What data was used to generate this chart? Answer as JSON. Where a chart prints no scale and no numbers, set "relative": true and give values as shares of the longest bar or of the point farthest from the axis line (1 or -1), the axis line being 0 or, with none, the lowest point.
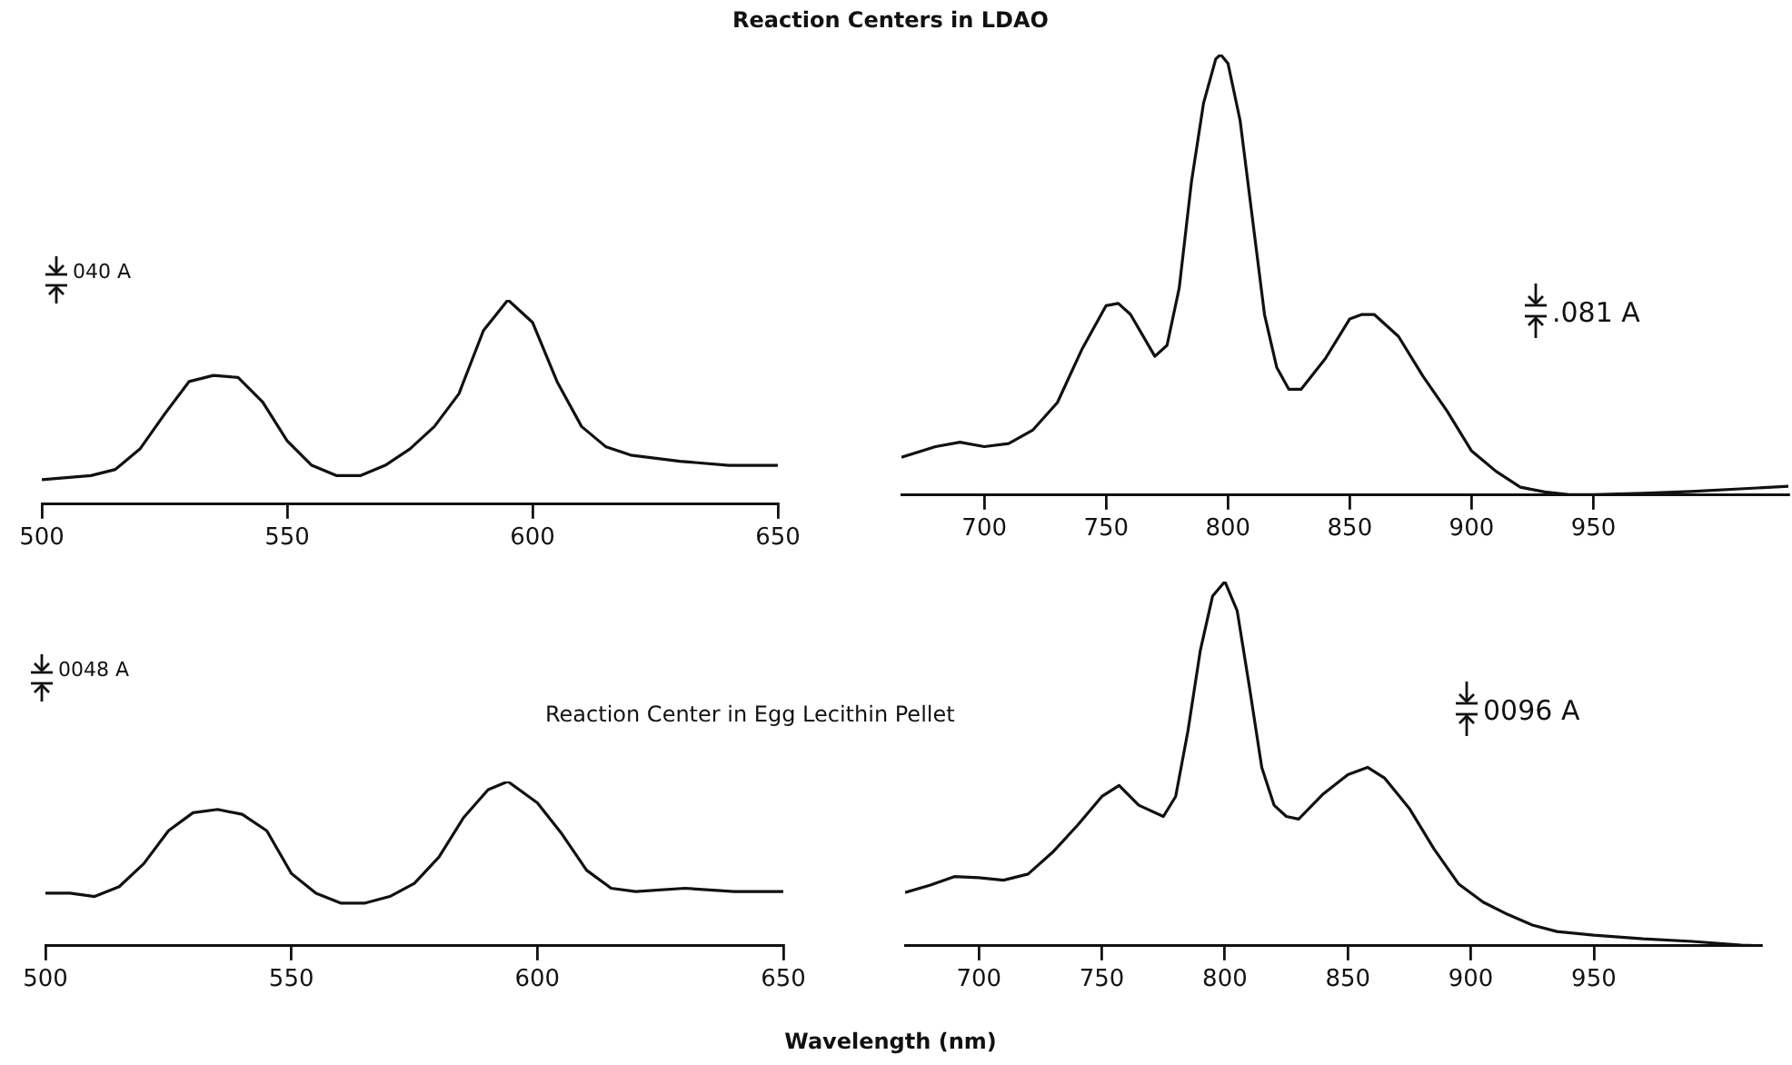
{
  "chart_data": [
    {
      "type": "line",
      "title": "Reaction Centers in LDAO",
      "relative": true,
      "color": "#111111",
      "xlim": [
        500,
        650
      ],
      "xticks": [
        500,
        550,
        600,
        650
      ],
      "annotations": [
        "040 A"
      ],
      "x": [
        500,
        510,
        515,
        520,
        525,
        530,
        535,
        540,
        545,
        550,
        555,
        560,
        565,
        570,
        575,
        580,
        585,
        590,
        595,
        600,
        605,
        610,
        615,
        620,
        630,
        640,
        650
      ],
      "values": [
        0.12,
        0.14,
        0.17,
        0.27,
        0.44,
        0.6,
        0.63,
        0.62,
        0.5,
        0.31,
        0.19,
        0.14,
        0.14,
        0.19,
        0.27,
        0.38,
        0.54,
        0.85,
        1,
        0.89,
        0.6,
        0.38,
        0.28,
        0.24,
        0.21,
        0.19,
        0.19
      ]
    },
    {
      "type": "line",
      "relative": true,
      "color": "#111111",
      "xlim": [
        666,
        1030
      ],
      "xticks": [
        700,
        750,
        800,
        850,
        900,
        950
      ],
      "annotations": [
        ".081 A"
      ],
      "x": [
        666,
        680,
        690,
        700,
        710,
        720,
        730,
        740,
        750,
        755,
        760,
        770,
        775,
        780,
        785,
        790,
        795,
        797,
        800,
        805,
        810,
        815,
        820,
        825,
        830,
        840,
        850,
        855,
        860,
        870,
        880,
        890,
        900,
        910,
        920,
        930,
        940,
        950,
        970,
        990,
        1010,
        1030
      ],
      "values": [
        0.086,
        0.11,
        0.12,
        0.11,
        0.117,
        0.148,
        0.21,
        0.33,
        0.43,
        0.435,
        0.41,
        0.315,
        0.34,
        0.47,
        0.71,
        0.89,
        0.99,
        1,
        0.98,
        0.85,
        0.63,
        0.41,
        0.29,
        0.24,
        0.24,
        0.31,
        0.4,
        0.41,
        0.41,
        0.36,
        0.27,
        0.19,
        0.1,
        0.054,
        0.018,
        0.007,
        0.001,
        0.001,
        0.004,
        0.008,
        0.014,
        0.02
      ]
    },
    {
      "type": "line",
      "title": "Reaction Center in Egg Lecithin Pellet",
      "relative": true,
      "color": "#111111",
      "xlim": [
        500,
        650
      ],
      "xticks": [
        500,
        550,
        600,
        650
      ],
      "annotations": [
        "0048 A"
      ],
      "x": [
        500,
        505,
        510,
        515,
        520,
        525,
        530,
        535,
        540,
        545,
        550,
        555,
        560,
        565,
        570,
        575,
        580,
        585,
        590,
        594,
        600,
        605,
        610,
        615,
        620,
        630,
        640,
        650
      ],
      "values": [
        0.32,
        0.32,
        0.3,
        0.36,
        0.5,
        0.7,
        0.81,
        0.83,
        0.8,
        0.7,
        0.44,
        0.32,
        0.26,
        0.26,
        0.3,
        0.38,
        0.54,
        0.78,
        0.95,
        1,
        0.87,
        0.68,
        0.46,
        0.35,
        0.33,
        0.35,
        0.33,
        0.33
      ]
    },
    {
      "type": "line",
      "xlabel": "Wavelength (nm)",
      "relative": true,
      "color": "#111111",
      "xlim": [
        670,
        1018
      ],
      "xticks": [
        700,
        750,
        800,
        850,
        900,
        950
      ],
      "annotations": [
        "0096 A"
      ],
      "x": [
        670,
        680,
        690,
        700,
        710,
        720,
        730,
        740,
        750,
        757,
        765,
        775,
        780,
        785,
        790,
        795,
        800,
        805,
        810,
        815,
        820,
        825,
        830,
        840,
        850,
        858,
        865,
        875,
        885,
        895,
        905,
        915,
        925,
        935,
        950,
        970,
        990,
        1010,
        1018
      ],
      "values": [
        0.146,
        0.166,
        0.19,
        0.187,
        0.18,
        0.197,
        0.257,
        0.33,
        0.41,
        0.44,
        0.386,
        0.355,
        0.41,
        0.59,
        0.81,
        0.96,
        1,
        0.92,
        0.71,
        0.49,
        0.386,
        0.355,
        0.348,
        0.417,
        0.47,
        0.49,
        0.46,
        0.377,
        0.266,
        0.17,
        0.12,
        0.086,
        0.057,
        0.039,
        0.029,
        0.019,
        0.012,
        0.002,
        0
      ]
    }
  ]
}
